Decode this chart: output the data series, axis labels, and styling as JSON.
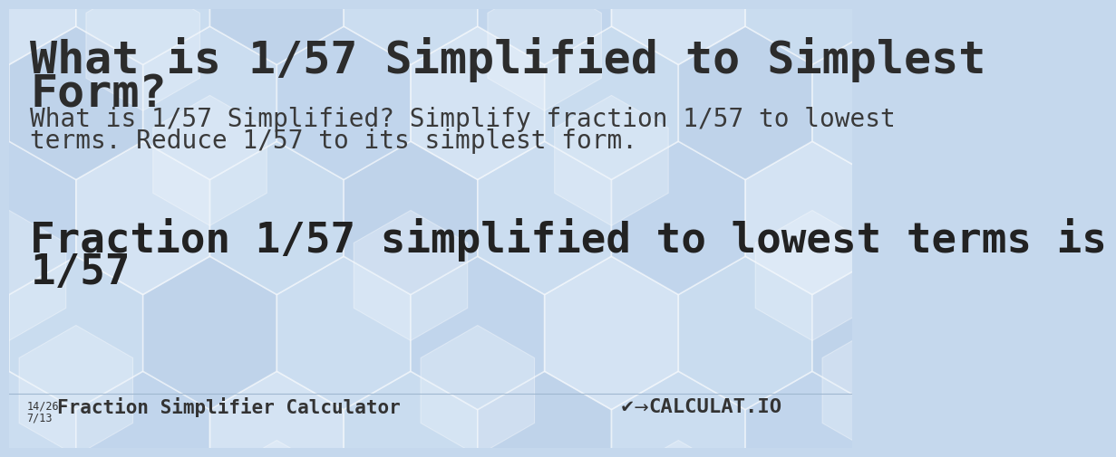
{
  "title_line1": "What is 1/57 Simplified to Simplest",
  "title_line2": "Form?",
  "subtitle_line1": "What is 1/57 Simplified? Simplify fraction 1/57 to lowest",
  "subtitle_line2": "terms. Reduce 1/57 to its simplest form.",
  "result_line1": "Fraction 1/57 simplified to lowest terms is",
  "result_line2": "1/57",
  "footer_frac1": "14/26",
  "footer_frac2": "7/13",
  "footer_label": "Fraction Simplifier Calculator",
  "title_color": "#2c2c2c",
  "subtitle_color": "#3a3a3a",
  "result_color": "#222222",
  "footer_color": "#333333",
  "bg_base": "#c5d8ed",
  "title_fontsize": 36,
  "subtitle_fontsize": 20,
  "result_fontsize": 33,
  "footer_fontsize": 13,
  "hex_colors": [
    "#d4e5f5",
    "#bdd3ec",
    "#e8f2fc",
    "#cfe2f3",
    "#b8cfe8"
  ],
  "hex_white": "#eef5fc"
}
